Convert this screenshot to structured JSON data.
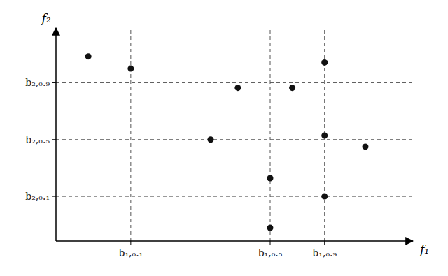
{
  "chart_data": {
    "type": "scatter",
    "xlabel": "f₁",
    "ylabel": "f₂",
    "x": [
      0.095,
      0.22,
      0.455,
      0.535,
      0.63,
      0.63,
      0.695,
      0.79,
      0.79,
      0.79,
      0.91
    ],
    "values": [
      0.91,
      0.85,
      0.5,
      0.755,
      0.065,
      0.31,
      0.755,
      0.22,
      0.52,
      0.88,
      0.465
    ],
    "color": "#111111",
    "xlim": [
      0.0,
      1.05
    ],
    "ylim": [
      0.0,
      1.05
    ],
    "xticks": [
      {
        "value": 0.22,
        "label": "b₁,₀.₁"
      },
      {
        "value": 0.63,
        "label": "b₁,₀.₅"
      },
      {
        "value": 0.79,
        "label": "b₁,₀.₉"
      }
    ],
    "yticks": [
      {
        "value": 0.22,
        "label": "b₂,₀.₁"
      },
      {
        "value": 0.5,
        "label": "b₂,₀.₅"
      },
      {
        "value": 0.78,
        "label": "b₂,₀.₉"
      }
    ],
    "grid": true
  }
}
